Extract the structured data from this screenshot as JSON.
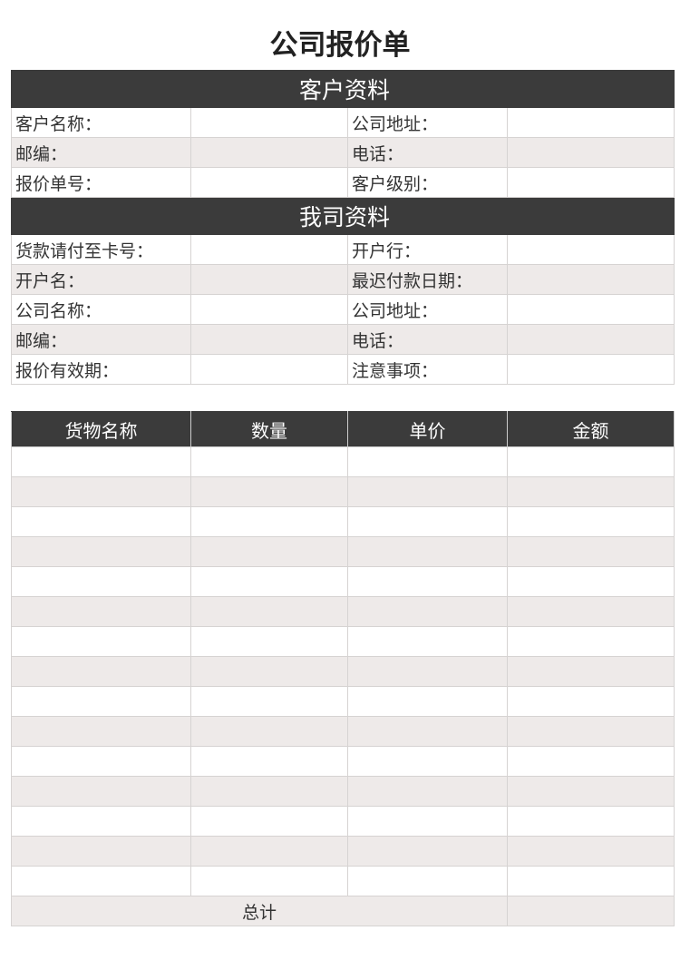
{
  "title": "公司报价单",
  "customer": {
    "header": "客户资料",
    "rows": [
      [
        "客户名称：",
        "公司地址："
      ],
      [
        "邮编：",
        "电话："
      ],
      [
        "报价单号：",
        "客户级别："
      ]
    ]
  },
  "company": {
    "header": "我司资料",
    "rows": [
      [
        "货款请付至卡号：",
        "开户行："
      ],
      [
        "开户名：",
        "最迟付款日期："
      ],
      [
        "公司名称：",
        "公司地址："
      ],
      [
        "邮编：",
        "电话："
      ],
      [
        "报价有效期：",
        "注意事项："
      ]
    ]
  },
  "items": {
    "columns": [
      "货物名称",
      "数量",
      "单价",
      "金额"
    ],
    "row_count": 15,
    "total_label": "总计"
  }
}
